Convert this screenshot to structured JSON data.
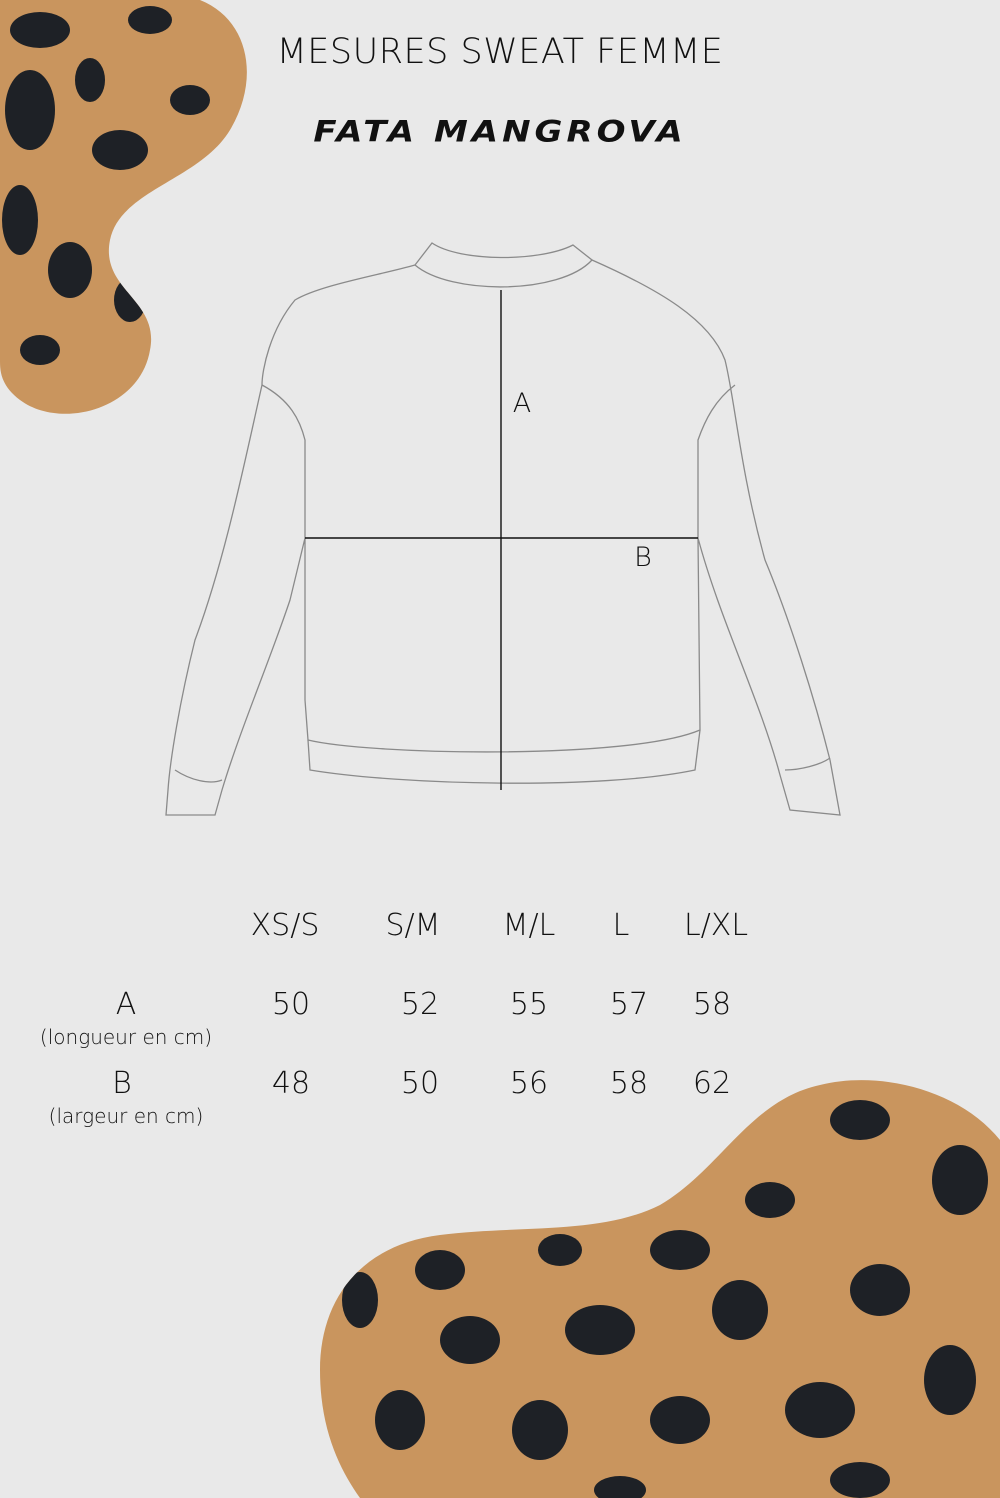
{
  "title": "MESURES SWEAT FEMME",
  "brand": "FATA MANGROVA",
  "diagram": {
    "label_a": "A",
    "label_b": "B"
  },
  "size_table": {
    "columns": [
      "XS/S",
      "S/M",
      "M/L",
      "L",
      "L/XL"
    ],
    "rows": [
      {
        "label": "A",
        "sublabel": "(longueur en cm)",
        "values": [
          "50",
          "52",
          "55",
          "57",
          "58"
        ]
      },
      {
        "label": "B",
        "sublabel": "(largeur en cm)",
        "values": [
          "48",
          "50",
          "56",
          "58",
          "62"
        ]
      }
    ]
  },
  "colors": {
    "background": "#e9e9e9",
    "leopard_base": "#c9955e",
    "leopard_spots": "#1e2126"
  }
}
